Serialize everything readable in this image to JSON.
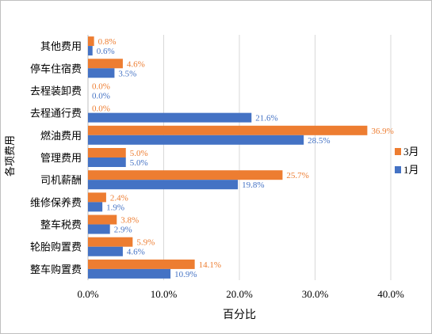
{
  "chart_data": {
    "type": "bar",
    "orientation": "horizontal",
    "title": "",
    "xlabel": "百分比",
    "ylabel": "各项费用",
    "xlim": [
      0,
      40
    ],
    "xticks": [
      "0.0%",
      "10.0%",
      "20.0%",
      "30.0%",
      "40.0%"
    ],
    "grid": true,
    "legend_position": "right",
    "categories": [
      "其他费用",
      "停车住宿费",
      "去程装卸费",
      "去程通行费",
      "燃油费用",
      "管理费用",
      "司机薪酬",
      "维修保养费",
      "整车税费",
      "轮胎购置费",
      "整车购置费"
    ],
    "series": [
      {
        "name": "3月",
        "color": "#ed7d31",
        "values": [
          0.8,
          4.6,
          0.0,
          0.0,
          36.9,
          5.0,
          25.7,
          2.4,
          3.8,
          5.9,
          14.1
        ],
        "labels": [
          "0.8%",
          "4.6%",
          "0.0%",
          "0.0%",
          "36.9%",
          "5.0%",
          "25.7%",
          "2.4%",
          "3.8%",
          "5.9%",
          "14.1%"
        ]
      },
      {
        "name": "1月",
        "color": "#4472c4",
        "values": [
          0.6,
          3.5,
          0.0,
          21.6,
          28.5,
          5.0,
          19.8,
          1.9,
          2.9,
          4.6,
          10.9
        ],
        "labels": [
          "0.6%",
          "3.5%",
          "0.0%",
          "21.6%",
          "28.5%",
          "5.0%",
          "19.8%",
          "1.9%",
          "2.9%",
          "4.6%",
          "10.9%"
        ]
      }
    ]
  }
}
